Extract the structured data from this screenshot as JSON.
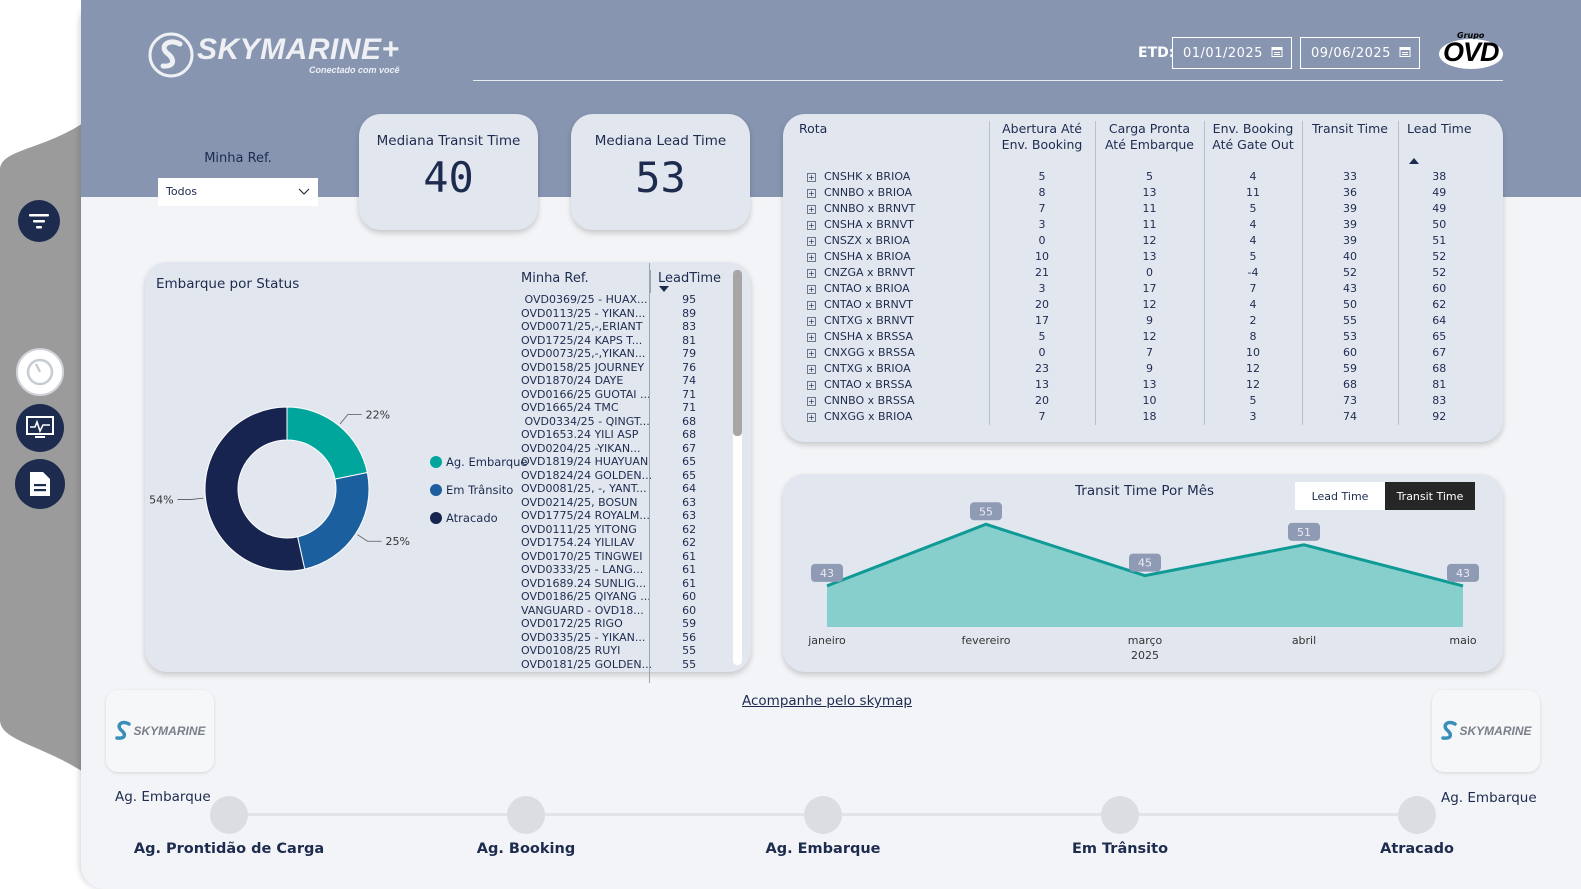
{
  "header": {
    "logo_text": "SKYMARINE+",
    "logo_tagline": "Conectado com você",
    "etd_label": "ETD:",
    "date_from": "01/01/2025",
    "date_to": "09/06/2025",
    "brand_top": "Grupo",
    "brand": "OVD"
  },
  "filter": {
    "label": "Minha Ref.",
    "value": "Todos"
  },
  "kpis": {
    "transit": {
      "title": "Mediana Transit Time",
      "value": "40"
    },
    "lead": {
      "title": "Mediana Lead Time",
      "value": "53"
    }
  },
  "routes": {
    "headers": [
      "Rota",
      "Abertura Até Env. Booking",
      "Carga Pronta Até Embarque",
      "Env. Booking Até Gate Out",
      "Transit Time",
      "Lead Time"
    ],
    "rows": [
      [
        "CNSHK x BRIOA",
        "5",
        "5",
        "4",
        "33",
        "38"
      ],
      [
        "CNNBO x BRIOA",
        "8",
        "13",
        "11",
        "36",
        "49"
      ],
      [
        "CNNBO x BRNVT",
        "7",
        "11",
        "5",
        "39",
        "49"
      ],
      [
        "CNSHA x BRNVT",
        "3",
        "11",
        "4",
        "39",
        "50"
      ],
      [
        "CNSZX x BRIOA",
        "0",
        "12",
        "4",
        "39",
        "51"
      ],
      [
        "CNSHA x BRIOA",
        "10",
        "13",
        "5",
        "40",
        "52"
      ],
      [
        "CNZGA x BRNVT",
        "21",
        "0",
        "-4",
        "52",
        "52"
      ],
      [
        "CNTAO x BRIOA",
        "3",
        "17",
        "7",
        "43",
        "60"
      ],
      [
        "CNTAO x BRNVT",
        "20",
        "12",
        "4",
        "50",
        "62"
      ],
      [
        "CNTXG x BRNVT",
        "17",
        "9",
        "2",
        "55",
        "64"
      ],
      [
        "CNSHA x BRSSA",
        "5",
        "12",
        "8",
        "53",
        "65"
      ],
      [
        "CNXGG x BRSSA",
        "0",
        "7",
        "10",
        "60",
        "67"
      ],
      [
        "CNTXG x BRIOA",
        "23",
        "9",
        "12",
        "59",
        "68"
      ],
      [
        "CNTAO x BRSSA",
        "13",
        "13",
        "12",
        "68",
        "81"
      ],
      [
        "CNNBO x BRSSA",
        "20",
        "10",
        "5",
        "73",
        "83"
      ],
      [
        "CNXGG x BRIOA",
        "7",
        "18",
        "3",
        "74",
        "92"
      ]
    ]
  },
  "status_chart": {
    "title": "Embarque por Status",
    "chart_data": {
      "type": "pie",
      "slices": [
        {
          "name": "Ag. Embarque",
          "value": 22,
          "label": "22%",
          "color": "#00a69c"
        },
        {
          "name": "Em Trânsito",
          "value": 25,
          "label": "25%",
          "color": "#1c5f9e"
        },
        {
          "name": "Atracado",
          "value": 54,
          "label": "54%",
          "color": "#17244f"
        }
      ]
    }
  },
  "ref_table": {
    "headers": [
      "Minha Ref.",
      "LeadTime"
    ],
    "rows": [
      [
        " OVD0369/25 - HUAX...",
        "95"
      ],
      [
        "OVD0113/25 - YIKAN...",
        "89"
      ],
      [
        "OVD0071/25,-,ERIANT",
        "83"
      ],
      [
        "OVD1725/24 KAPS T...",
        "81"
      ],
      [
        "OVD0073/25,-,YIKAN...",
        "79"
      ],
      [
        "OVD0158/25 JOURNEY",
        "76"
      ],
      [
        "OVD1870/24 DAYE",
        "74"
      ],
      [
        "OVD0166/25 GUOTAI ...",
        "71"
      ],
      [
        "OVD1665/24 TMC",
        "71"
      ],
      [
        " OVD0334/25 - QINGT...",
        "68"
      ],
      [
        "OVD1653.24 YILI ASP",
        "68"
      ],
      [
        "OVD0204/25 -YIKAN...",
        "67"
      ],
      [
        "OVD1819/24 HUAYUAN",
        "65"
      ],
      [
        "OVD1824/24 GOLDEN...",
        "65"
      ],
      [
        "OVD0081/25, -, YANT...",
        "64"
      ],
      [
        "OVD0214/25, BOSUN",
        "63"
      ],
      [
        "OVD1775/24 ROYALM...",
        "63"
      ],
      [
        "OVD0111/25 YITONG",
        "62"
      ],
      [
        "OVD1754.24 YILILAV",
        "62"
      ],
      [
        "OVD0170/25 TINGWEI",
        "61"
      ],
      [
        "OVD0333/25 - LANG...",
        "61"
      ],
      [
        "OVD1689.24 SUNLIG...",
        "61"
      ],
      [
        "OVD0186/25 QIYANG ...",
        "60"
      ],
      [
        "VANGUARD - OVD18...",
        "60"
      ],
      [
        "OVD0172/25 RIGO",
        "59"
      ],
      [
        "OVD0335/25 - YIKAN...",
        "56"
      ],
      [
        "OVD0108/25 RUYI",
        "55"
      ],
      [
        "OVD0181/25 GOLDEN...",
        "55"
      ]
    ]
  },
  "monthly_chart": {
    "title": "Transit Time Por Mês",
    "toggle": {
      "lead": "Lead Time",
      "transit": "Transit Time"
    },
    "chart_data": {
      "type": "area",
      "categories": [
        "janeiro",
        "fevereiro",
        "março",
        "abril",
        "maio"
      ],
      "values": [
        43,
        55,
        45,
        51,
        43
      ],
      "x_group_label": "2025",
      "ylim": [
        35,
        57
      ],
      "fill_color": "#87cfcd",
      "line_color": "#0f9a95"
    }
  },
  "skymap_link": "Acompanhe pelo skymap",
  "tracker": {
    "logo_text": "SKYMARINE",
    "left_status": "Ag. Embarque",
    "right_status": "Ag. Embarque",
    "stages": [
      "Ag. Prontidão de Carga",
      "Ag. Booking",
      "Ag. Embarque",
      "Em Trânsito",
      "Atracado"
    ]
  },
  "icons": [
    "filter-icon",
    "clock-icon",
    "monitor-icon",
    "document-icon",
    "calendar-icon",
    "expand-icon",
    "sort-icon",
    "chevron-down-icon"
  ]
}
